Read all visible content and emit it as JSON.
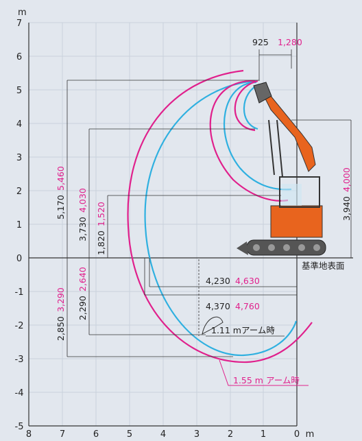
{
  "axes": {
    "y_unit": "m",
    "x_unit": "m",
    "y_ticks": [
      "7",
      "6",
      "5",
      "4",
      "3",
      "2",
      "1",
      "0",
      "-1",
      "-2",
      "-3",
      "-4",
      "-5"
    ],
    "x_ticks": [
      "8",
      "7",
      "6",
      "5",
      "4",
      "3",
      "2",
      "1",
      "0"
    ]
  },
  "dimensions": {
    "top_offset": {
      "black": "925",
      "magenta": "1,280"
    },
    "max_dig_height": {
      "black": "5,170",
      "magenta": "5,460"
    },
    "max_dump_height": {
      "black": "3,730",
      "magenta": "4,030"
    },
    "min_swing_height": {
      "black": "1,820",
      "magenta": "1,520"
    },
    "right_height": {
      "black": "3,940",
      "magenta": "4,000"
    },
    "dig_depth": {
      "black": "2,850",
      "magenta": "3,290"
    },
    "vertical_depth": {
      "black": "2,290",
      "magenta": "2,640"
    },
    "reach_ground": {
      "black": "4,230",
      "magenta": "4,630"
    },
    "max_reach": {
      "black": "4,370",
      "magenta": "4,760"
    }
  },
  "labels": {
    "ground": "基準地表面",
    "arm_short": "1.11 mアーム時",
    "arm_long": "1.55 m アーム時"
  },
  "colors": {
    "background": "#e2e7ee",
    "magenta": "#e0208c",
    "cyan": "#2fb0e0",
    "machine_orange": "#e8641e"
  }
}
